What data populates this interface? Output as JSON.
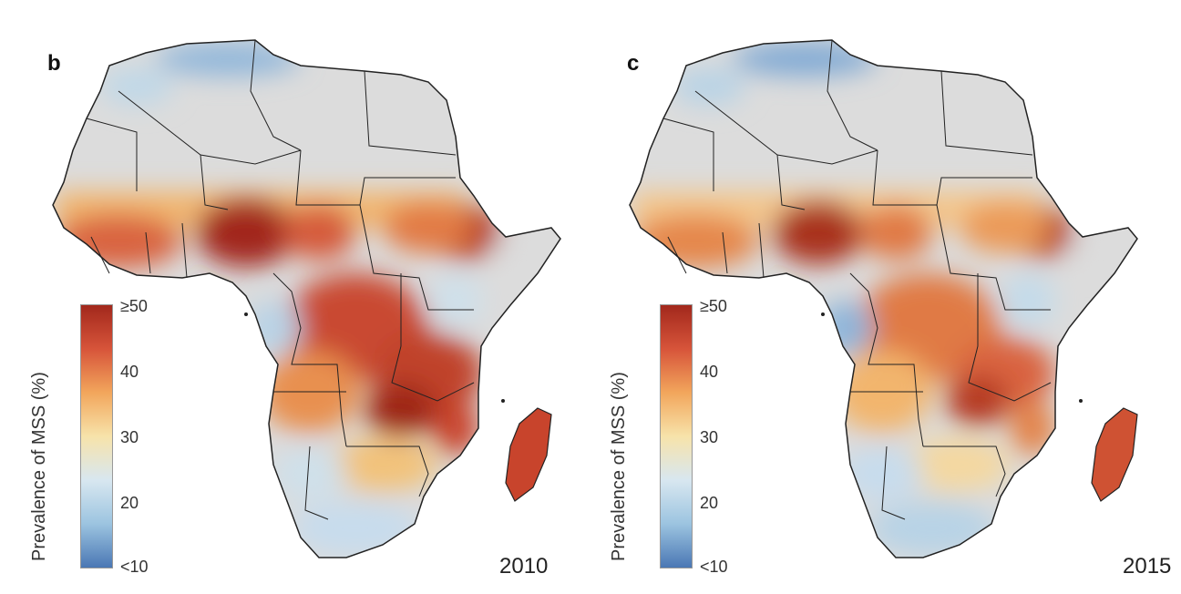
{
  "panels": [
    {
      "letter": "b",
      "year": "2010",
      "colorbar": {
        "label": "Prevalence of MSS (%)",
        "ticks": [
          "≥50",
          "40",
          "30",
          "20",
          "<10"
        ],
        "colors": [
          "#a2281c",
          "#d7543a",
          "#f2a65c",
          "#f7e3aa",
          "#d8e7f0",
          "#9cc4e0",
          "#4a77b4"
        ]
      }
    },
    {
      "letter": "c",
      "year": "2015",
      "colorbar": {
        "label": "Prevalence of MSS (%)",
        "ticks": [
          "≥50",
          "40",
          "30",
          "20",
          "<10"
        ],
        "colors": [
          "#a2281c",
          "#d7543a",
          "#f2a65c",
          "#f7e3aa",
          "#d8e7f0",
          "#9cc4e0",
          "#4a77b4"
        ]
      }
    }
  ],
  "map_colors": {
    "no_data": "#dcdcdc",
    "border": "#222222"
  }
}
